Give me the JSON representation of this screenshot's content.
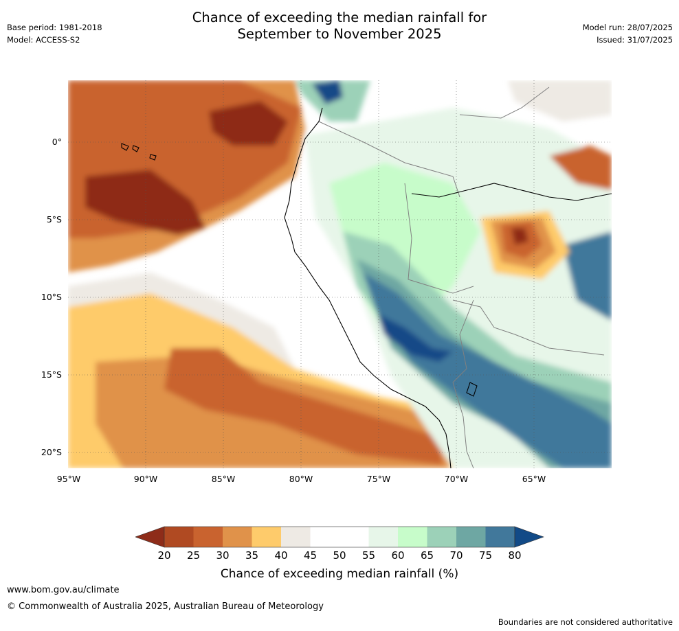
{
  "title_line1": "Chance of exceeding the median rainfall for",
  "title_line2": "September to November 2025",
  "base_period": "Base period: 1981-2018",
  "model": "Model: ACCESS-S2",
  "model_run": "Model run: 28/07/2025",
  "issued": "Issued: 31/07/2025",
  "lat_labels": [
    "0°",
    "5°S",
    "10°S",
    "15°S",
    "20°S"
  ],
  "lon_labels": [
    "95°W",
    "90°W",
    "85°W",
    "80°W",
    "75°W",
    "70°W",
    "65°W"
  ],
  "colorbar": {
    "ticks": [
      "20",
      "25",
      "30",
      "35",
      "40",
      "45",
      "50",
      "55",
      "60",
      "65",
      "70",
      "75",
      "80"
    ],
    "colors": [
      "#8e2c19",
      "#b04a22",
      "#c9632f",
      "#e0924a",
      "#fecb6b",
      "#eeeae4",
      "#ffffff",
      "#ffffff",
      "#e7f6e9",
      "#c7fcca",
      "#9cd1b8",
      "#6ea7a3",
      "#41789b",
      "#124a87"
    ],
    "label": "Chance of exceeding median rainfall (%)"
  },
  "map_colors": {
    "ocean_dry": "#c9632f",
    "deep_dry": "#8e2c19",
    "mid_dry": "#e0924a",
    "light_dry": "#fecb6b",
    "neutral": "#eeeae4",
    "light_wet": "#e7f6e9",
    "pale_green": "#c7fcca",
    "teal": "#9cd1b8",
    "dark_teal": "#6ea7a3",
    "blue_teal": "#41789b",
    "deep_blue": "#124a87",
    "coastline": "#000000",
    "borders": "#808080"
  },
  "website": "www.bom.gov.au/climate",
  "copyright": "© Commonwealth of Australia 2025, Australian Bureau of Meteorology",
  "disclaimer": "Boundaries are not considered authoritative"
}
